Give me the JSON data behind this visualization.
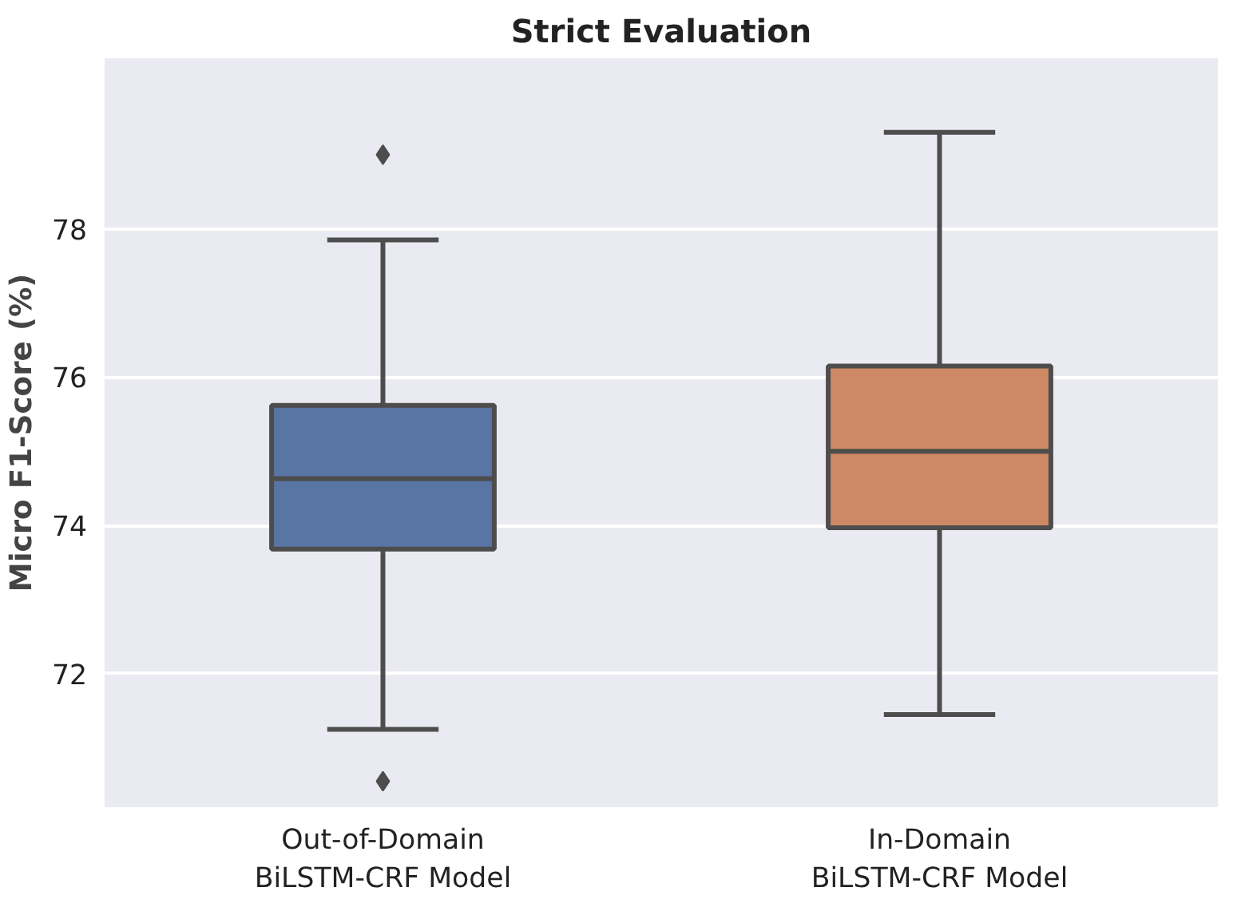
{
  "chart_data": {
    "type": "box",
    "title": "Strict Evaluation",
    "ylabel": "Micro F1-Score (%)",
    "categories": [
      "Out-of-Domain\nBiLSTM-CRF Model",
      "In-Domain\nBiLSTM-CRF Model"
    ],
    "colors": [
      "#5975a4",
      "#cc8963"
    ],
    "boxes": [
      {
        "low": 71.25,
        "q1": 73.68,
        "median": 74.63,
        "q3": 75.62,
        "high": 77.85,
        "outliers": [
          79.0,
          70.55
        ]
      },
      {
        "low": 71.45,
        "q1": 73.97,
        "median": 75.0,
        "q3": 76.15,
        "high": 79.3
      }
    ],
    "ylim": [
      70.2,
      80.3
    ],
    "yticks": [
      72,
      74,
      76,
      78
    ],
    "grid": "y",
    "marker": "diamond"
  }
}
